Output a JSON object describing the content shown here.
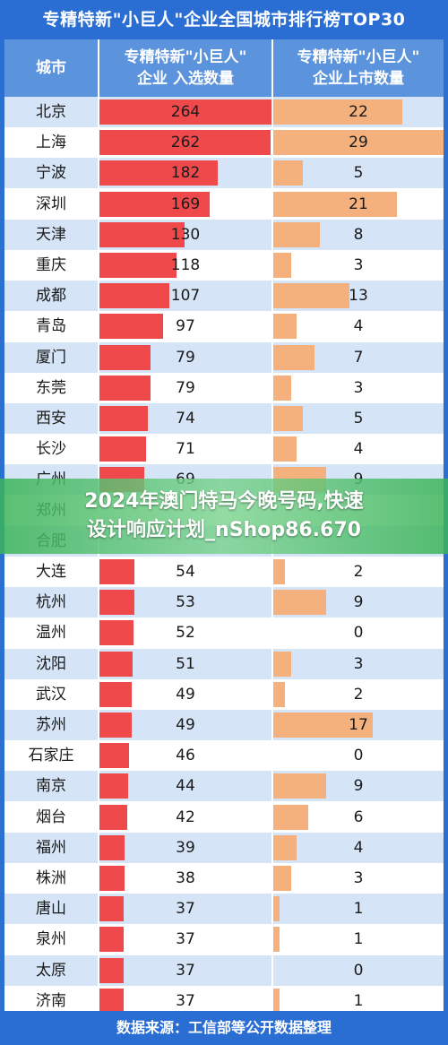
{
  "title": "专精特新\"小巨人\"企业全国城市排行榜TOP30",
  "footer": "数据来源：工信部等公开数据整理",
  "watermark": {
    "line1": "2024年澳门特马今晚号码,快速",
    "line2": "设计响应计划_nShop86.670"
  },
  "colors": {
    "selected_bar": "#f0494c",
    "listed_bar": "#f4b07d",
    "header": "#5b93dc",
    "title_bg": "#2a6ed4"
  },
  "chart_data": {
    "type": "bar",
    "title": "专精特新\"小巨人\"企业全国城市排行榜TOP30",
    "columns": {
      "city": "城市",
      "selected_line1": "专精特新\"小巨人\"",
      "selected_line2": "企业 入选数量",
      "listed_line1": "专精特新\"小巨人\"",
      "listed_line2": "企业上市数量"
    },
    "categories": [
      "北京",
      "上海",
      "宁波",
      "深圳",
      "天津",
      "重庆",
      "成都",
      "青岛",
      "厦门",
      "东莞",
      "西安",
      "长沙",
      "广州",
      "郑州",
      "合肥",
      "大连",
      "杭州",
      "温州",
      "沈阳",
      "武汉",
      "苏州",
      "石家庄",
      "南京",
      "烟台",
      "福州",
      "株洲",
      "唐山",
      "泉州",
      "太原",
      "济南"
    ],
    "series": [
      {
        "name": "专精特新\"小巨人\"企业 入选数量",
        "values": [
          264,
          262,
          182,
          169,
          130,
          118,
          107,
          97,
          79,
          79,
          74,
          71,
          69,
          null,
          null,
          54,
          53,
          52,
          51,
          49,
          49,
          46,
          44,
          42,
          39,
          38,
          37,
          37,
          37,
          37
        ]
      },
      {
        "name": "专精特新\"小巨人\"企业上市数量",
        "values": [
          22,
          29,
          5,
          21,
          8,
          3,
          13,
          4,
          7,
          3,
          5,
          4,
          9,
          null,
          null,
          2,
          9,
          0,
          3,
          2,
          17,
          0,
          9,
          6,
          4,
          3,
          1,
          1,
          0,
          1
        ]
      }
    ],
    "selected_max": 264,
    "listed_max": 29,
    "source": "数据来源：工信部等公开数据整理"
  }
}
